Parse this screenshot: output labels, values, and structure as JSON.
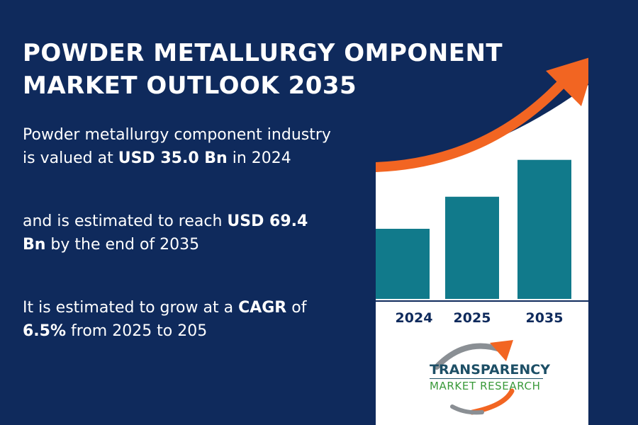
{
  "title": {
    "line1": "POWDER METALLURGY OMPONENT",
    "line2": "MARKET OUTLOOK 2035"
  },
  "stats": {
    "p1": {
      "pre": "Powder metallurgy component industry is valued at ",
      "bold": "USD 35.0 Bn",
      "post": " in 2024"
    },
    "p2": {
      "pre": "and is estimated to reach ",
      "bold": "USD 69.4 Bn",
      "post": " by the end of 2035"
    },
    "p3": {
      "pre": "It is estimated to grow at a ",
      "bold1": "CAGR",
      "mid": " of ",
      "bold2": "6.5%",
      "post": " from 2025 to 205"
    }
  },
  "logo": {
    "name": "TRANSPARENCY",
    "sub": "MARKET RESEARCH"
  },
  "colors": {
    "background": "#0f2a5c",
    "bar": "#117a8b",
    "arrow": "#f26522",
    "panel": "#ffffff"
  },
  "chart_data": {
    "type": "bar",
    "categories": [
      "2024",
      "2025",
      "2035"
    ],
    "values": [
      35.0,
      51.0,
      69.4
    ],
    "title": "",
    "xlabel": "",
    "ylabel": "",
    "ylim": [
      0,
      70
    ],
    "grid": false,
    "legend": "none",
    "trend_arrow": "upward"
  }
}
